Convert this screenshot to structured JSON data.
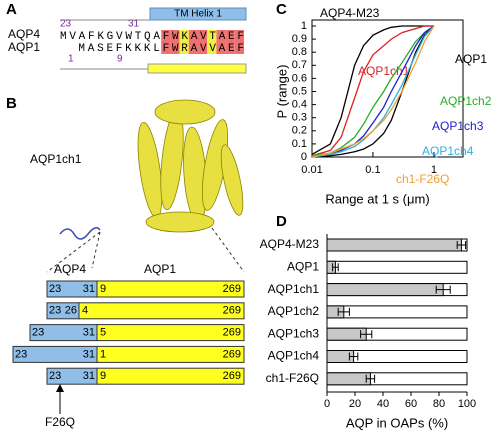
{
  "panel_labels": [
    "A",
    "B",
    "C",
    "D"
  ],
  "alignment": {
    "helix_label": "TM Helix 1",
    "rows": [
      {
        "name": "AQP4",
        "sequence": "MVAFKGVWTQAFWKAVTAEF",
        "start": 23,
        "mark": 31
      },
      {
        "name": "AQP1",
        "sequence": "MASEFKKKLFWRAVVAEF",
        "start": 1,
        "mark": 9
      }
    ]
  },
  "structure": {
    "label": "AQP1ch1"
  },
  "constructs": {
    "headers": [
      "AQP4",
      "AQP1"
    ],
    "rows": [
      {
        "aqp4": [
          23,
          31
        ],
        "aqp1": [
          9,
          269
        ]
      },
      {
        "aqp4": [
          23,
          26
        ],
        "aqp1": [
          4,
          269
        ]
      },
      {
        "aqp4": [
          23,
          31
        ],
        "aqp1": [
          5,
          269
        ]
      },
      {
        "aqp4": [
          23,
          31
        ],
        "aqp1": [
          1,
          269
        ]
      },
      {
        "aqp4": [
          23,
          31
        ],
        "aqp1": [
          9,
          269
        ]
      }
    ],
    "mutation": "F26Q"
  },
  "chart_data": [
    {
      "type": "line",
      "xlabel": "Range at 1 s (μm)",
      "ylabel": "P (range)",
      "log_x": true,
      "x": [
        0.01,
        0.02,
        0.03,
        0.05,
        0.07,
        0.1,
        0.15,
        0.2,
        0.3,
        0.5,
        0.7,
        1
      ],
      "series": [
        {
          "name": "AQP4-M23",
          "color": "#000000",
          "values": [
            0.02,
            0.1,
            0.3,
            0.7,
            0.85,
            0.93,
            0.97,
            0.99,
            1,
            1,
            1,
            1
          ]
        },
        {
          "name": "AQP1ch1",
          "color": "#e02020",
          "values": [
            0.01,
            0.05,
            0.15,
            0.45,
            0.65,
            0.78,
            0.85,
            0.9,
            0.95,
            0.98,
            1,
            1
          ]
        },
        {
          "name": "AQP1",
          "color": "#000000",
          "values": [
            0,
            0.01,
            0.02,
            0.04,
            0.06,
            0.1,
            0.18,
            0.28,
            0.5,
            0.8,
            0.93,
            1
          ]
        },
        {
          "name": "AQP1ch2",
          "color": "#22b022",
          "values": [
            0.01,
            0.03,
            0.07,
            0.15,
            0.25,
            0.38,
            0.5,
            0.6,
            0.72,
            0.88,
            0.95,
            1
          ]
        },
        {
          "name": "AQP1ch3",
          "color": "#2020d0",
          "values": [
            0,
            0.02,
            0.05,
            0.1,
            0.16,
            0.26,
            0.38,
            0.5,
            0.65,
            0.85,
            0.95,
            1
          ]
        },
        {
          "name": "AQP1ch4",
          "color": "#30b0e0",
          "values": [
            0,
            0.02,
            0.04,
            0.08,
            0.13,
            0.2,
            0.3,
            0.4,
            0.55,
            0.78,
            0.92,
            1
          ]
        },
        {
          "name": "ch1-F26Q",
          "color": "#f0a030",
          "values": [
            0,
            0.03,
            0.06,
            0.1,
            0.14,
            0.2,
            0.28,
            0.36,
            0.5,
            0.72,
            0.88,
            1
          ]
        }
      ],
      "xlim": [
        0.01,
        3
      ],
      "xticks": [
        0.01,
        0.1,
        1
      ],
      "ylim": [
        0,
        1
      ],
      "yticks": [
        0,
        0.1,
        0.2,
        0.3,
        0.4,
        0.5,
        0.6,
        0.7,
        0.8,
        0.9,
        1
      ]
    },
    {
      "type": "hbar",
      "xlabel": "AQP in OAPs (%)",
      "color": "#c8c8c8",
      "categories": [
        "AQP4-M23",
        "AQP1",
        "AQP1ch1",
        "AQP1ch2",
        "AQP1ch3",
        "AQP1ch4",
        "ch1-F26Q"
      ],
      "values": [
        96,
        6,
        83,
        12,
        28,
        19,
        31
      ],
      "errors": [
        3,
        2,
        5,
        4,
        4,
        3,
        3
      ],
      "xlim": [
        0,
        100
      ],
      "xticks": [
        0,
        20,
        40,
        60,
        80,
        100
      ]
    }
  ]
}
